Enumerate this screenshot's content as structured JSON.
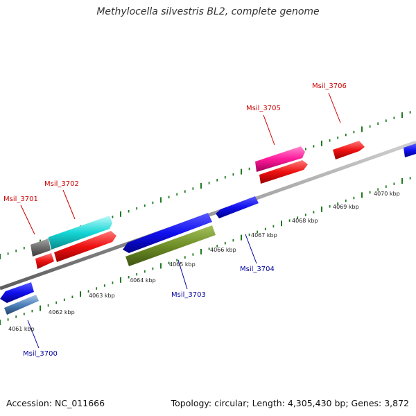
{
  "title": "Methylocella silvestris BL2, complete genome",
  "accession": "Accession: NC_011666",
  "summary": "Topology: circular; Length: 4,305,430 bp; Genes: 3,872",
  "colors": {
    "backbone": "#8a8a8a",
    "tick": "#1e7a1e",
    "forward_label": "#cc0000",
    "reverse_label": "#000099",
    "scale_label": "#222222"
  },
  "scale_labels": [
    "4061 kbp",
    "4062 kbp",
    "4063 kbp",
    "4064 kbp",
    "4065 kbp",
    "4066 kbp",
    "4067 kbp",
    "4068 kbp",
    "4069 kbp",
    "4070 kbp"
  ],
  "gene_labels": {
    "forward": [
      "Msil_3701",
      "Msil_3702",
      "Msil_3705",
      "Msil_3706"
    ],
    "reverse": [
      "Msil_3700",
      "Msil_3703",
      "Msil_3704"
    ]
  }
}
